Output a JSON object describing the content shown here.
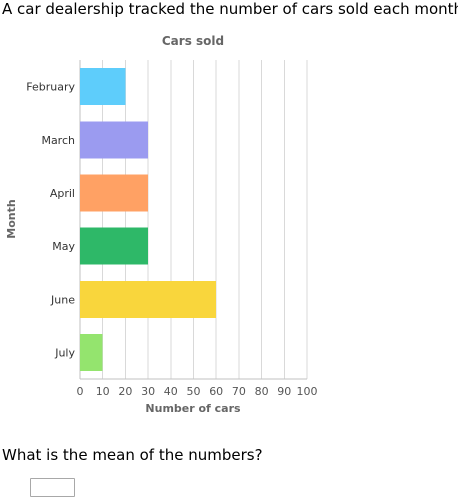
{
  "prompt": "A car dealership tracked the number of cars sold each month.",
  "question": "What is the mean of the numbers?",
  "answer": {
    "value": "",
    "placeholder": ""
  },
  "colors": {
    "grid": "#d9d9d9",
    "axis": "#c2c2c2",
    "title": "#666666",
    "label": "#333333",
    "tick": "#555555"
  },
  "chart_data": {
    "type": "bar",
    "orientation": "horizontal",
    "title": "Cars sold",
    "xlabel": "Number of cars",
    "ylabel": "Month",
    "categories": [
      "February",
      "March",
      "April",
      "May",
      "June",
      "July"
    ],
    "values": [
      20,
      30,
      30,
      30,
      60,
      10
    ],
    "colors": [
      "#5ecdfb",
      "#9b9bf0",
      "#ffa164",
      "#2eb868",
      "#f9d63c",
      "#94e46e"
    ],
    "xlim": [
      0,
      100
    ],
    "xticks": [
      0,
      10,
      20,
      30,
      40,
      50,
      60,
      70,
      80,
      90,
      100
    ],
    "grid": true,
    "legend": "none"
  }
}
